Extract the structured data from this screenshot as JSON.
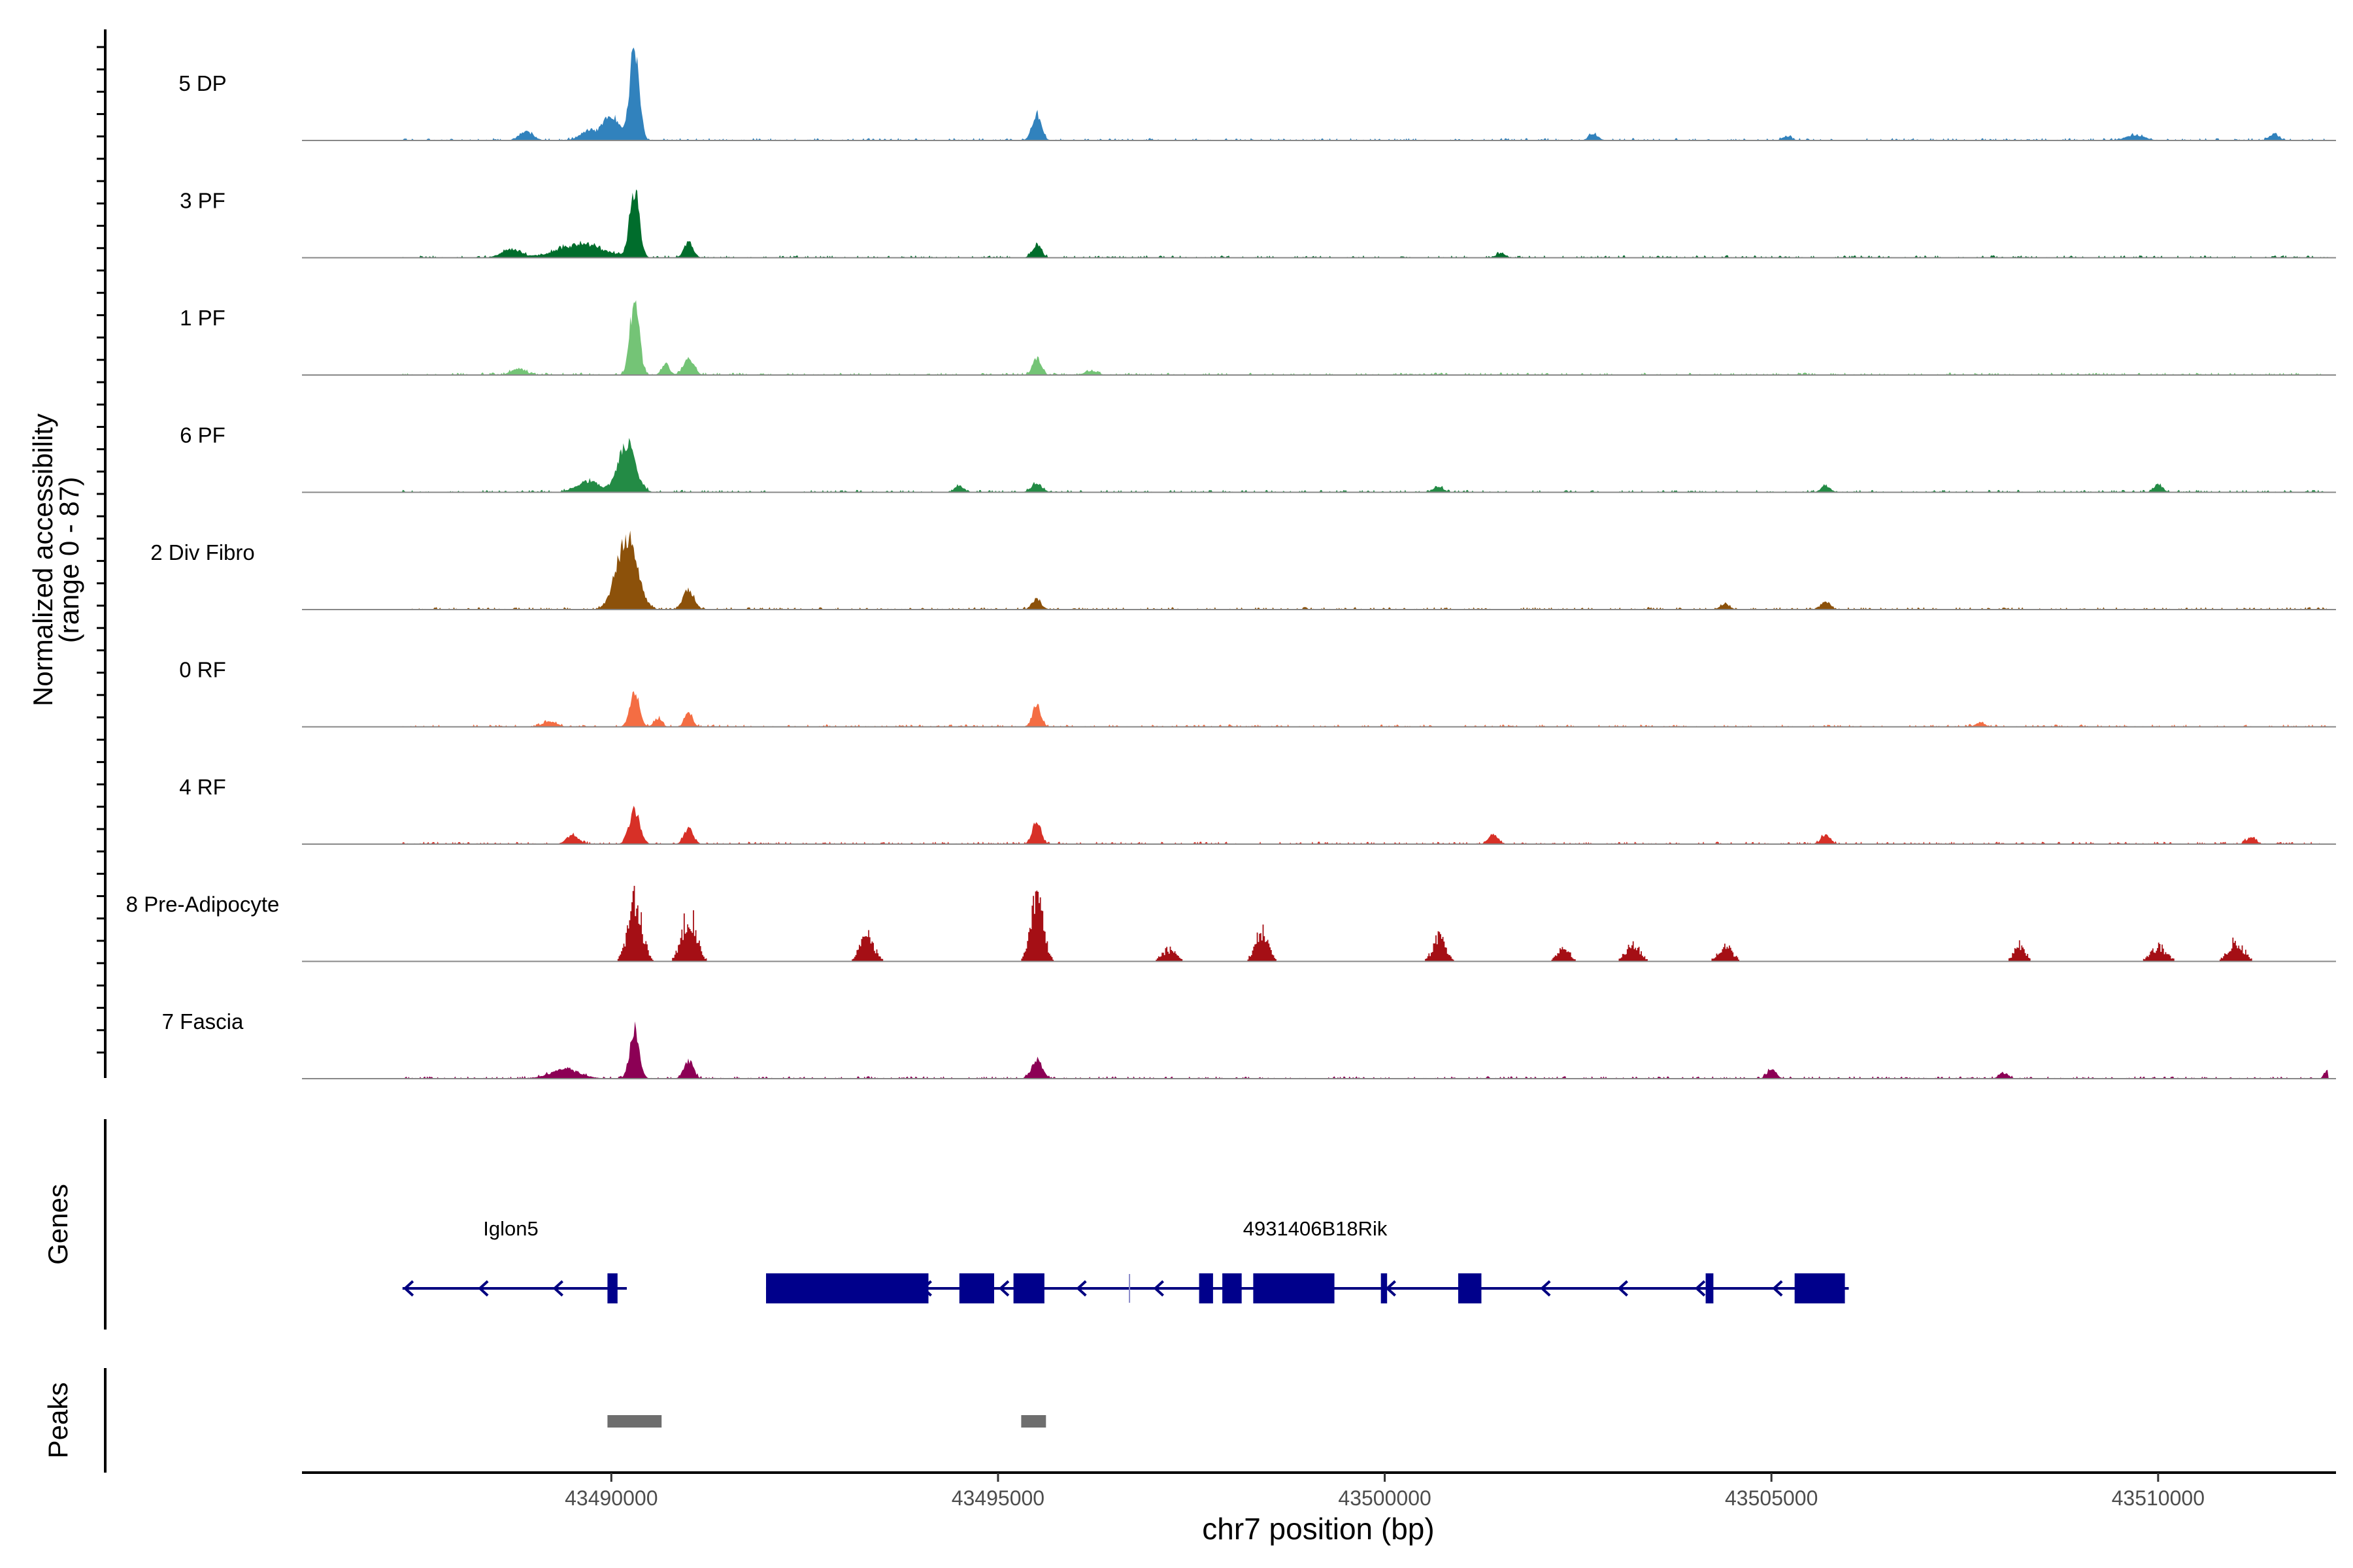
{
  "chart_data": {
    "type": "area",
    "title": "",
    "ylabel": "Normalized accessibility",
    "ylabel_range": "(range 0 - 87)",
    "ylim": [
      0,
      87
    ],
    "xlabel": "chr7 position (bp)",
    "xlim": [
      43486000,
      43512300
    ],
    "xticks": [
      43490000,
      43495000,
      43500000,
      43505000,
      43510000
    ],
    "xtick_labels": [
      "43490000",
      "43495000",
      "43500000",
      "43505000",
      "43510000"
    ],
    "tracks": [
      {
        "name": "5 DP",
        "color": "#3182bd",
        "style": "smooth",
        "seed": 11,
        "peaks": [
          [
            43490300,
            84,
            60
          ],
          [
            43490000,
            22,
            110
          ],
          [
            43489700,
            8,
            110
          ],
          [
            43488900,
            8,
            90
          ],
          [
            43495500,
            24,
            60
          ],
          [
            43502700,
            6,
            60
          ],
          [
            43509700,
            5,
            120
          ],
          [
            43511500,
            6,
            60
          ],
          [
            43505200,
            4,
            60
          ]
        ]
      },
      {
        "name": "3 PF",
        "color": "#006d2c",
        "style": "smooth",
        "seed": 23,
        "peaks": [
          [
            43490300,
            62,
            60
          ],
          [
            43489600,
            12,
            300
          ],
          [
            43491000,
            14,
            60
          ],
          [
            43495500,
            12,
            60
          ],
          [
            43488700,
            8,
            120
          ],
          [
            43501500,
            4,
            60
          ]
        ]
      },
      {
        "name": "1 PF",
        "color": "#74c476",
        "style": "smooth",
        "seed": 37,
        "peaks": [
          [
            43490300,
            68,
            60
          ],
          [
            43491000,
            14,
            70
          ],
          [
            43490700,
            10,
            50
          ],
          [
            43495500,
            15,
            55
          ],
          [
            43488800,
            6,
            90
          ],
          [
            43496200,
            4,
            80
          ]
        ]
      },
      {
        "name": "6 PF",
        "color": "#238b45",
        "style": "smooth",
        "seed": 41,
        "peaks": [
          [
            43490200,
            44,
            110
          ],
          [
            43489700,
            10,
            150
          ],
          [
            43495500,
            8,
            70
          ],
          [
            43494500,
            6,
            60
          ],
          [
            43510000,
            7,
            60
          ],
          [
            43505700,
            6,
            60
          ],
          [
            43500700,
            5,
            60
          ]
        ]
      },
      {
        "name": "2 Div Fibro",
        "color": "#8c510a",
        "style": "smooth",
        "seed": 53,
        "peaks": [
          [
            43490200,
            66,
            130
          ],
          [
            43491000,
            18,
            70
          ],
          [
            43495500,
            9,
            60
          ],
          [
            43505700,
            7,
            60
          ],
          [
            43504400,
            5,
            60
          ]
        ]
      },
      {
        "name": "0 RF",
        "color": "#f46d43",
        "style": "smooth",
        "seed": 67,
        "peaks": [
          [
            43490300,
            33,
            60
          ],
          [
            43495500,
            20,
            55
          ],
          [
            43491000,
            14,
            50
          ],
          [
            43490600,
            8,
            50
          ],
          [
            43489200,
            5,
            90
          ],
          [
            43507700,
            4,
            60
          ]
        ]
      },
      {
        "name": "4 RF",
        "color": "#d73027",
        "style": "smooth",
        "seed": 71,
        "peaks": [
          [
            43490300,
            30,
            70
          ],
          [
            43491000,
            14,
            60
          ],
          [
            43495500,
            22,
            55
          ],
          [
            43501400,
            9,
            60
          ],
          [
            43505700,
            8,
            60
          ],
          [
            43489500,
            8,
            80
          ],
          [
            43511200,
            6,
            60
          ]
        ]
      },
      {
        "name": "8 Pre-Adipocyte",
        "color": "#a50f15",
        "style": "bars",
        "seed": 83,
        "peaks": [
          [
            43490300,
            60,
            90
          ],
          [
            43491000,
            50,
            90
          ],
          [
            43495500,
            65,
            80
          ],
          [
            43498400,
            32,
            80
          ],
          [
            43500700,
            26,
            80
          ],
          [
            43493300,
            26,
            90
          ],
          [
            43508200,
            18,
            70
          ],
          [
            43511000,
            20,
            100
          ],
          [
            43503200,
            18,
            90
          ],
          [
            43504400,
            16,
            90
          ],
          [
            43510000,
            15,
            100
          ],
          [
            43497200,
            12,
            90
          ],
          [
            43502300,
            14,
            80
          ]
        ]
      },
      {
        "name": "7 Fascia",
        "color": "#8c0055",
        "style": "smooth",
        "seed": 97,
        "peaks": [
          [
            43490300,
            45,
            60
          ],
          [
            43491000,
            16,
            60
          ],
          [
            43489400,
            8,
            200
          ],
          [
            43495500,
            16,
            70
          ],
          [
            43512200,
            8,
            40
          ],
          [
            43505000,
            8,
            60
          ],
          [
            43508000,
            5,
            60
          ]
        ]
      }
    ],
    "genes": [
      {
        "name": "Iglon5",
        "strand": "-",
        "start": 43487300,
        "end": 43490200,
        "exons": [
          [
            43489950,
            43490080
          ]
        ]
      },
      {
        "name": "4931406B18Rik",
        "strand": "-",
        "start": 43492000,
        "end": 43506000,
        "exons": [
          [
            43492000,
            43494100
          ],
          [
            43494500,
            43494950
          ],
          [
            43495200,
            43495600
          ],
          [
            43497600,
            43497780
          ],
          [
            43497900,
            43498150
          ],
          [
            43498300,
            43499350
          ],
          [
            43499950,
            43500030
          ],
          [
            43500950,
            43501250
          ],
          [
            43504150,
            43504250
          ],
          [
            43505300,
            43505950
          ]
        ],
        "marks": [
          43496700
        ]
      }
    ],
    "peaks": [
      [
        43489950,
        43490650
      ],
      [
        43495300,
        43495620
      ]
    ],
    "panel_labels": {
      "genes": "Genes",
      "peaks": "Peaks"
    }
  }
}
